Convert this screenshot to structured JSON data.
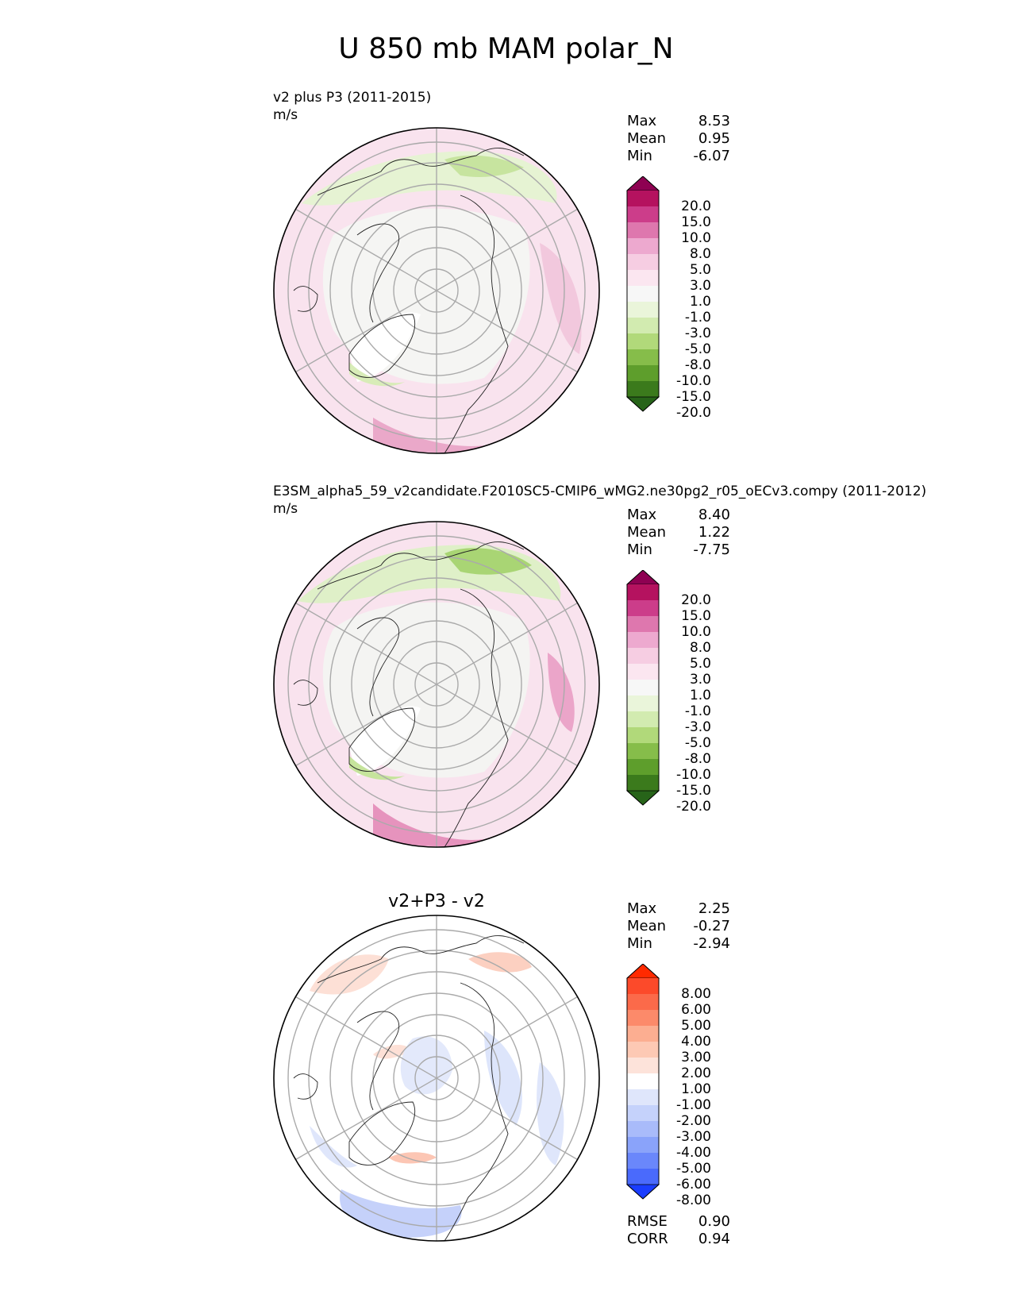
{
  "title": "U 850 mb MAM polar_N",
  "panels": [
    {
      "title": "v2 plus P3 (2011-2015)",
      "units": "m/s",
      "stats": [
        {
          "label": "Max",
          "value": "8.53"
        },
        {
          "label": "Mean",
          "value": "0.95"
        },
        {
          "label": "Min",
          "value": "-6.07"
        }
      ],
      "colorbar": {
        "labels": [
          "20.0",
          "15.0",
          "10.0",
          "8.0",
          "5.0",
          "3.0",
          "1.0",
          "-1.0",
          "-3.0",
          "-5.0",
          "-8.0",
          "-10.0",
          "-15.0",
          "-20.0"
        ],
        "colors": [
          "#8e0152",
          "#b5125f",
          "#cc3d8a",
          "#de77ae",
          "#eda9cf",
          "#f6cde2",
          "#fbe6f0",
          "#f7f7f7",
          "#eaf5da",
          "#d2ebb0",
          "#b1d97a",
          "#86bd4a",
          "#5e9e2c",
          "#3b7a1c",
          "#276419"
        ]
      }
    },
    {
      "title": "E3SM_alpha5_59_v2candidate.F2010SC5-CMIP6_wMG2.ne30pg2_r05_oECv3.compy (2011-2012)",
      "units": "m/s",
      "stats": [
        {
          "label": "Max",
          "value": "8.40"
        },
        {
          "label": "Mean",
          "value": "1.22"
        },
        {
          "label": "Min",
          "value": "-7.75"
        }
      ],
      "colorbar": {
        "labels": [
          "20.0",
          "15.0",
          "10.0",
          "8.0",
          "5.0",
          "3.0",
          "1.0",
          "-1.0",
          "-3.0",
          "-5.0",
          "-8.0",
          "-10.0",
          "-15.0",
          "-20.0"
        ],
        "colors": [
          "#8e0152",
          "#b5125f",
          "#cc3d8a",
          "#de77ae",
          "#eda9cf",
          "#f6cde2",
          "#fbe6f0",
          "#f7f7f7",
          "#eaf5da",
          "#d2ebb0",
          "#b1d97a",
          "#86bd4a",
          "#5e9e2c",
          "#3b7a1c",
          "#276419"
        ]
      }
    },
    {
      "title": "v2+P3 - v2",
      "units": "",
      "stats": [
        {
          "label": "Max",
          "value": "2.25"
        },
        {
          "label": "Mean",
          "value": "-0.27"
        },
        {
          "label": "Min",
          "value": "-2.94"
        }
      ],
      "colorbar": {
        "labels": [
          "8.00",
          "6.00",
          "5.00",
          "4.00",
          "3.00",
          "2.00",
          "1.00",
          "-1.00",
          "-2.00",
          "-3.00",
          "-4.00",
          "-5.00",
          "-6.00",
          "-8.00"
        ],
        "colors": [
          "#ff2a00",
          "#fc4a2a",
          "#fb6a4a",
          "#fc8a6a",
          "#fcae91",
          "#fdc9b4",
          "#fde3da",
          "#ffffff",
          "#dfe6fb",
          "#c5d2fb",
          "#a9bbfa",
          "#8aa3fa",
          "#6a87fb",
          "#4a6afc",
          "#1a3dff"
        ]
      },
      "footer": [
        {
          "label": "RMSE",
          "value": "0.90"
        },
        {
          "label": "CORR",
          "value": "0.94"
        }
      ]
    }
  ]
}
